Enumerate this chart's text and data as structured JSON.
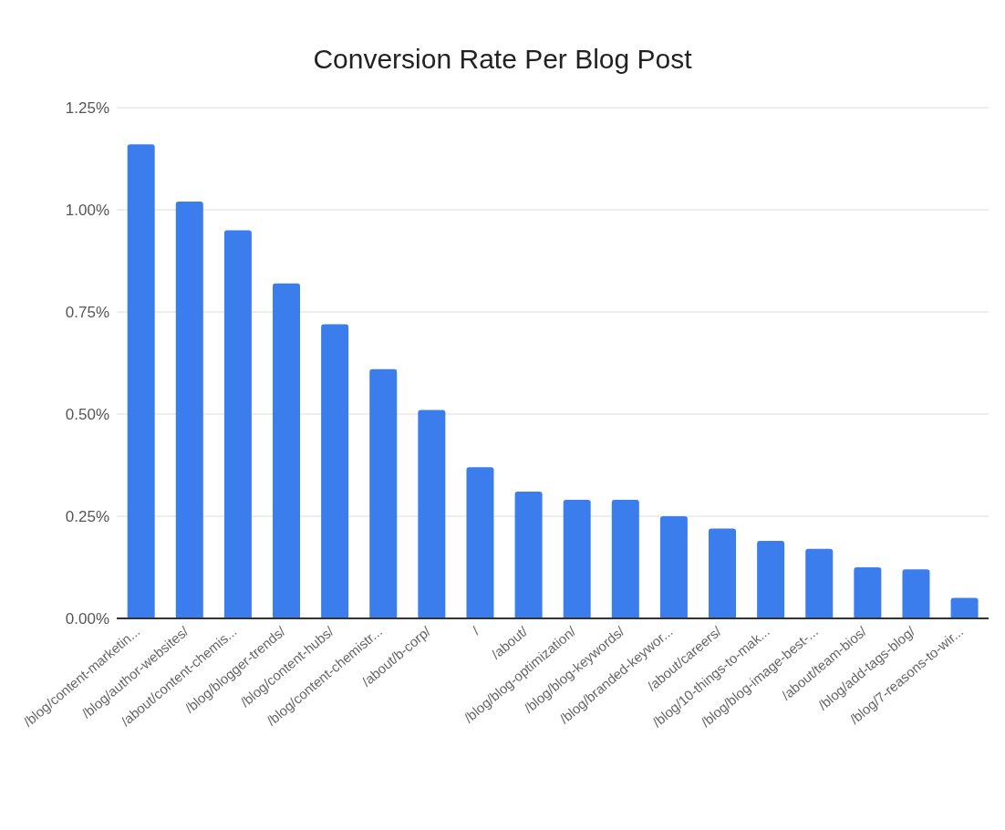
{
  "chart_data": {
    "type": "bar",
    "title": "Conversion Rate Per Blog Post",
    "categories": [
      "/blog/content-marketin...",
      "/blog/author-websites/",
      "/about/content-chemis...",
      "/blog/blogger-trends/",
      "/blog/content-hubs/",
      "/blog/content-chemistr...",
      "/about/b-corp/",
      "/",
      "/about/",
      "/blog/blog-optimization/",
      "/blog/blog-keywords/",
      "/blog/branded-keywor...",
      "/about/careers/",
      "/blog/10-things-to-mak...",
      "/blog/blog-image-best-...",
      "/about/team-bios/",
      "/blog/add-tags-blog/",
      "/blog/7-reasons-to-wir..."
    ],
    "values": [
      1.16,
      1.02,
      0.95,
      0.82,
      0.72,
      0.61,
      0.51,
      0.37,
      0.31,
      0.29,
      0.29,
      0.25,
      0.22,
      0.19,
      0.17,
      0.125,
      0.12,
      0.05
    ],
    "color": "#3b7ded",
    "ylim": [
      0,
      1.25
    ],
    "yticks": [
      {
        "value": 0,
        "label": "0.00%"
      },
      {
        "value": 0.25,
        "label": "0.25%"
      },
      {
        "value": 0.5,
        "label": "0.50%"
      },
      {
        "value": 0.75,
        "label": "0.75%"
      },
      {
        "value": 1,
        "label": "1.00%"
      },
      {
        "value": 1.25,
        "label": "1.25%"
      }
    ],
    "grid": "y",
    "legend": false
  }
}
